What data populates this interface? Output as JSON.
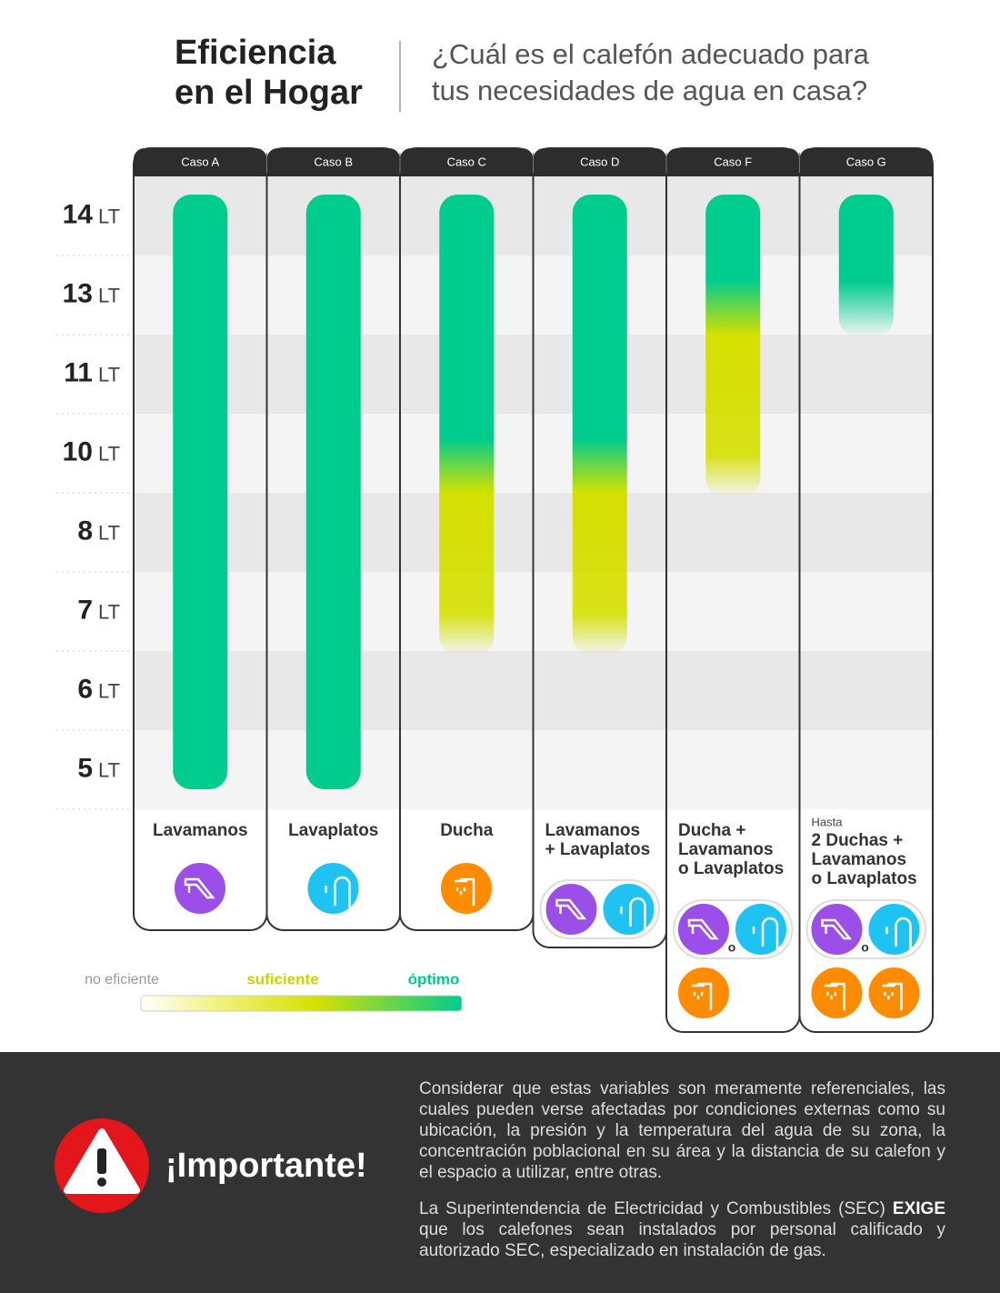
{
  "header": {
    "title_lines": [
      "Eficiencia",
      "en el Hogar"
    ],
    "subtitle_lines": [
      "¿Cuál es el calefón adecuado para",
      "tus necesidades de agua en casa?"
    ]
  },
  "chart": {
    "unit": "LT",
    "rows": [
      14,
      13,
      11,
      10,
      8,
      7,
      6,
      5
    ],
    "cases": [
      {
        "name": "Caso A",
        "label_lines": [
          "Lavamanos"
        ],
        "optimo": [
          5,
          14
        ]
      },
      {
        "name": "Caso B",
        "label_lines": [
          "Lavaplatos"
        ],
        "optimo": [
          5,
          14
        ]
      },
      {
        "name": "Caso C",
        "label_lines": [
          "Ducha"
        ],
        "optimo": [
          10,
          14
        ],
        "suficiente": [
          7,
          8
        ]
      },
      {
        "name": "Caso D",
        "label_lines": [
          "Lavamanos",
          "+ Lavaplatos"
        ],
        "optimo": [
          10,
          14
        ],
        "suficiente": [
          7,
          8
        ]
      },
      {
        "name": "Caso F",
        "label_lines": [
          "Ducha +",
          "Lavamanos",
          "o Lavaplatos"
        ],
        "optimo": [
          13,
          14
        ],
        "suficiente": [
          10,
          11
        ],
        "or_label": "o"
      },
      {
        "name": "Caso G",
        "prefix": "Hasta",
        "label_lines": [
          "2 Duchas +",
          "Lavamanos",
          "o Lavaplatos"
        ],
        "optimo": [
          13,
          14
        ],
        "or_label": "o"
      }
    ]
  },
  "legend": {
    "labels": [
      "no eficiente",
      "suficiente",
      "óptimo"
    ]
  },
  "footer": {
    "title": "¡Importante!",
    "paragraph1": "Considerar que estas variables son meramente referenciales, las cuales pueden verse afectadas por condiciones externas como su ubicación, la presión y la temperatura del agua de su zona, la concentración poblacional en su área y la distancia de su calefon y el espacio a utilizar, entre otras.",
    "paragraph2_start": "La Superintendencia de Electricidad y Combustibles (SEC)",
    "paragraph2_bold": "EXIGE",
    "paragraph2_end": "que los calefones sean instalados por personal calificado y autorizado SEC, especializado en instalación de gas."
  }
}
